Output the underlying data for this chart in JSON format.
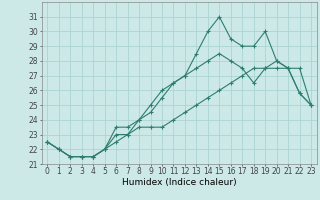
{
  "xlabel": "Humidex (Indice chaleur)",
  "background_color": "#cce9e8",
  "grid_color": "#aad4d2",
  "line_color": "#2e7d6e",
  "x": [
    0,
    1,
    2,
    3,
    4,
    5,
    6,
    7,
    8,
    9,
    10,
    11,
    12,
    13,
    14,
    15,
    16,
    17,
    18,
    19,
    20,
    21,
    22,
    23
  ],
  "line1": [
    22.5,
    22.0,
    21.5,
    21.5,
    21.5,
    22.0,
    23.5,
    23.5,
    24.0,
    24.5,
    25.5,
    26.5,
    27.0,
    28.5,
    30.0,
    31.0,
    29.5,
    29.0,
    29.0,
    30.0,
    28.0,
    27.5,
    25.8,
    25.0
  ],
  "line2": [
    22.5,
    22.0,
    21.5,
    21.5,
    21.5,
    22.0,
    23.0,
    23.0,
    24.0,
    25.0,
    26.0,
    26.5,
    27.0,
    27.5,
    28.0,
    28.5,
    28.0,
    27.5,
    26.5,
    27.5,
    28.0,
    27.5,
    25.8,
    25.0
  ],
  "line3": [
    22.5,
    22.0,
    21.5,
    21.5,
    21.5,
    22.0,
    22.5,
    23.0,
    23.5,
    23.5,
    23.5,
    24.0,
    24.5,
    25.0,
    25.5,
    26.0,
    26.5,
    27.0,
    27.5,
    27.5,
    27.5,
    27.5,
    27.5,
    25.0
  ],
  "ylim": [
    21,
    32
  ],
  "xlim": [
    -0.5,
    23.5
  ],
  "yticks": [
    21,
    22,
    23,
    24,
    25,
    26,
    27,
    28,
    29,
    30,
    31
  ],
  "xtick_labels": [
    "0",
    "1",
    "2",
    "3",
    "4",
    "5",
    "6",
    "7",
    "8",
    "9",
    "10",
    "11",
    "12",
    "13",
    "14",
    "15",
    "16",
    "17",
    "18",
    "19",
    "20",
    "21",
    "22",
    "23"
  ],
  "tick_fontsize": 5.5,
  "xlabel_fontsize": 6.5
}
